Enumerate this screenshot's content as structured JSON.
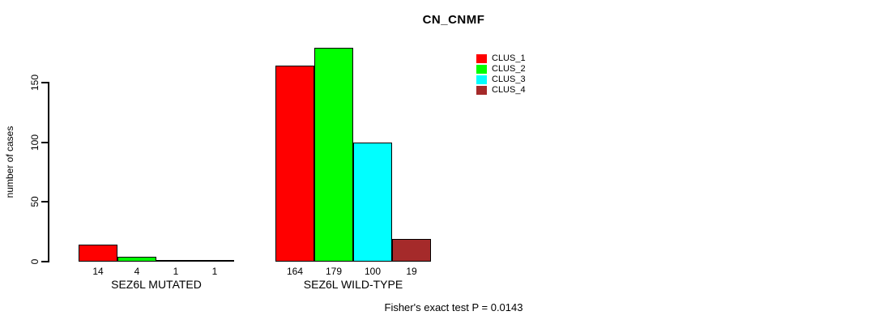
{
  "chart_data": {
    "type": "bar",
    "title": "CN_CNMF",
    "ylabel": "number of cases",
    "ylim": [
      0,
      150
    ],
    "yticks": [
      0,
      50,
      100,
      150
    ],
    "grid": false,
    "legend_position": "top-right",
    "categories": [
      "SEZ6L MUTATED",
      "SEZ6L WILD-TYPE"
    ],
    "series": [
      {
        "name": "CLUS_1",
        "color": "#ff0000",
        "values": [
          14,
          164
        ]
      },
      {
        "name": "CLUS_2",
        "color": "#00ff00",
        "values": [
          4,
          179
        ]
      },
      {
        "name": "CLUS_3",
        "color": "#00ffff",
        "values": [
          1,
          100
        ]
      },
      {
        "name": "CLUS_4",
        "color": "#a52a2a",
        "values": [
          1,
          19
        ]
      }
    ],
    "annotation": "Fisher's exact test P = 0.0143",
    "axis_color": "#000000",
    "background_color": "#ffffff"
  }
}
